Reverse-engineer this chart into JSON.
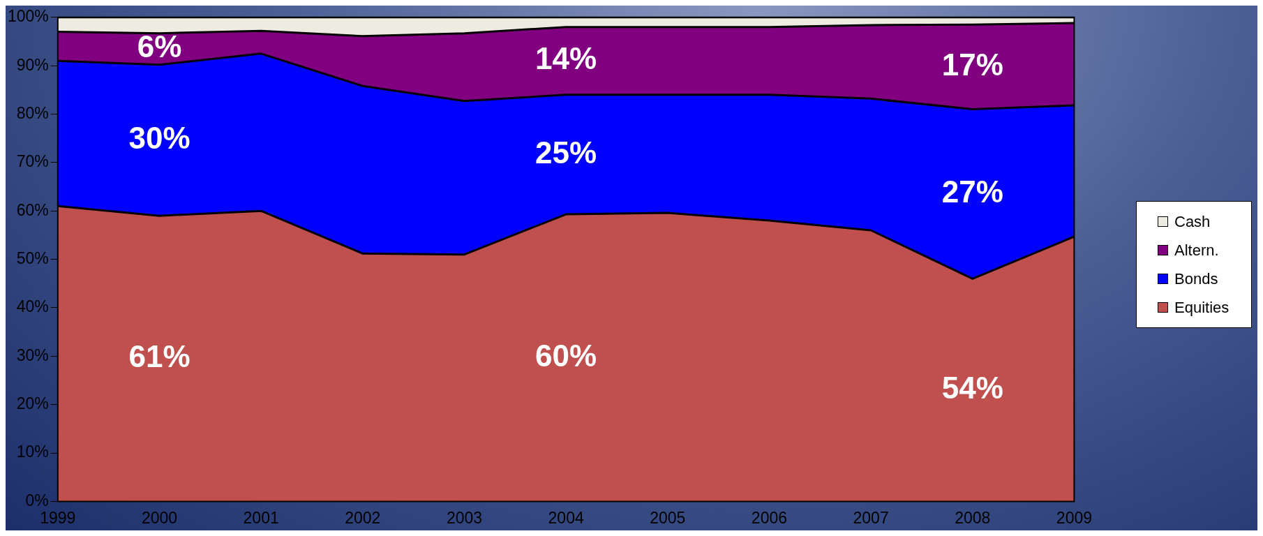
{
  "chart_data": {
    "type": "area",
    "stacked": true,
    "x": [
      1999,
      2000,
      2001,
      2002,
      2003,
      2004,
      2005,
      2006,
      2007,
      2008,
      2009
    ],
    "xlim": [
      1999,
      2009
    ],
    "xticks": [
      1999,
      2000,
      2001,
      2002,
      2003,
      2004,
      2005,
      2006,
      2007,
      2008,
      2009
    ],
    "ylim": [
      0,
      100
    ],
    "yticks": [
      {
        "value": 0,
        "label": "0%"
      },
      {
        "value": 10,
        "label": "10%"
      },
      {
        "value": 20,
        "label": "20%"
      },
      {
        "value": 30,
        "label": "30%"
      },
      {
        "value": 40,
        "label": "40%"
      },
      {
        "value": 50,
        "label": "50%"
      },
      {
        "value": 60,
        "label": "60%"
      },
      {
        "value": 70,
        "label": "70%"
      },
      {
        "value": 80,
        "label": "80%"
      },
      {
        "value": 90,
        "label": "90%"
      },
      {
        "value": 100,
        "label": "100%"
      }
    ],
    "grid": false,
    "legend": "right",
    "series": [
      {
        "name": "Equities",
        "color": "#c0504d",
        "values": [
          61,
          59,
          60,
          51.2,
          51,
          59.3,
          59.6,
          58,
          56,
          46,
          54.7
        ]
      },
      {
        "name": "Bonds",
        "color": "#0000ff",
        "values": [
          30,
          31.2,
          32.5,
          34.6,
          31.7,
          24.7,
          24.4,
          26,
          27.2,
          35,
          27.1
        ]
      },
      {
        "name": "Altern.",
        "color": "#800080",
        "values": [
          6,
          6.5,
          4.7,
          10.3,
          14,
          14,
          14,
          14,
          15.2,
          17.5,
          17
        ]
      },
      {
        "name": "Cash",
        "color": "#eeece1",
        "values": [
          3,
          3.3,
          2.8,
          3.9,
          3.3,
          2,
          2,
          2,
          1.6,
          1.5,
          1.2
        ]
      }
    ],
    "annotations": [
      "6%",
      "30%",
      "61%",
      "14%",
      "25%",
      "60%",
      "17%",
      "27%",
      "54%"
    ]
  }
}
